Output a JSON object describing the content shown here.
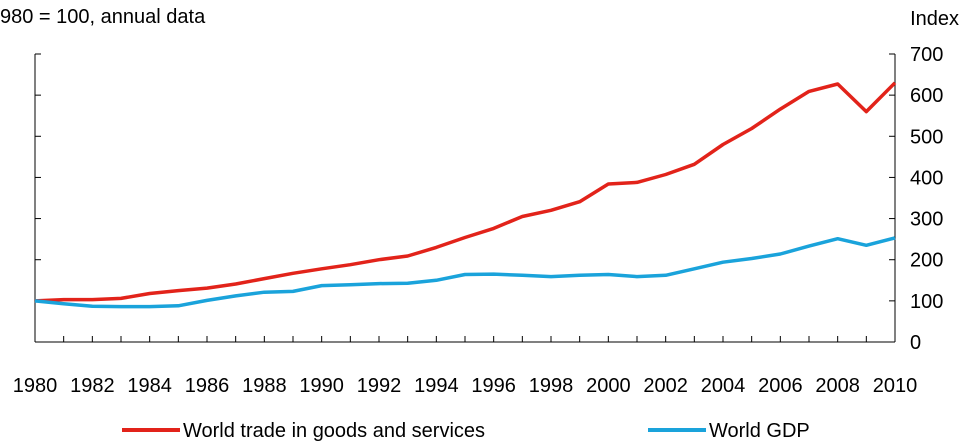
{
  "chart_data": {
    "type": "line",
    "subtitle": "980 = 100, annual data",
    "ylabel": "Index",
    "ylim": [
      0,
      700
    ],
    "yticks": [
      0,
      100,
      200,
      300,
      400,
      500,
      600,
      700
    ],
    "xlim": [
      1980,
      2010
    ],
    "xticks": [
      1980,
      1982,
      1984,
      1986,
      1988,
      1990,
      1992,
      1994,
      1996,
      1998,
      2000,
      2002,
      2004,
      2006,
      2008,
      2010
    ],
    "x": [
      1980,
      1981,
      1982,
      1983,
      1984,
      1985,
      1986,
      1987,
      1988,
      1989,
      1990,
      1991,
      1992,
      1993,
      1994,
      1995,
      1996,
      1997,
      1998,
      1999,
      2000,
      2001,
      2002,
      2003,
      2004,
      2005,
      2006,
      2007,
      2008,
      2009,
      2010
    ],
    "grid": false,
    "legend_position": "bottom",
    "series": [
      {
        "name": "World trade in goods and services",
        "color": "#e2231a",
        "values": [
          100,
          103,
          103,
          106,
          118,
          125,
          131,
          141,
          154,
          167,
          178,
          188,
          200,
          209,
          230,
          254,
          276,
          305,
          320,
          341,
          384,
          388,
          407,
          432,
          480,
          519,
          566,
          609,
          627,
          560,
          630
        ]
      },
      {
        "name": "World GDP",
        "color": "#1aa3db",
        "values": [
          100,
          93,
          87,
          86,
          86,
          88,
          101,
          112,
          121,
          123,
          137,
          139,
          142,
          143,
          150,
          164,
          165,
          162,
          159,
          162,
          164,
          159,
          162,
          178,
          194,
          203,
          214,
          233,
          251,
          235,
          253
        ]
      }
    ]
  }
}
